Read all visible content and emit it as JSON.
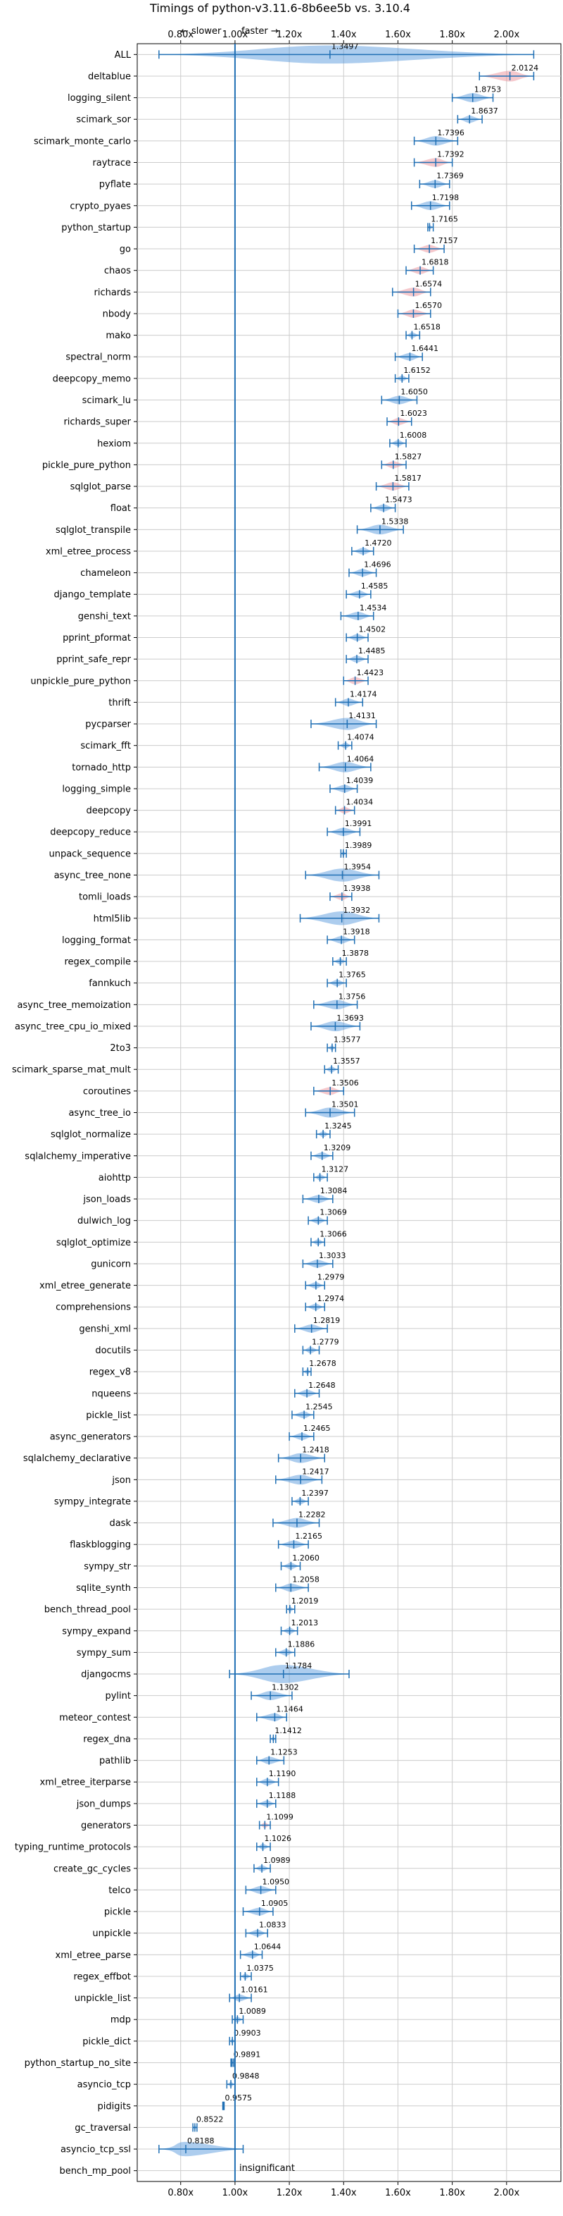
{
  "chart_data": {
    "type": "violin",
    "title": "Timings of python-v3.11.6-8b6ee5b vs. 3.10.4",
    "top_annotation": {
      "slower": "← slower",
      "faster": "faster →"
    },
    "bottom_annotation": "insignificant",
    "x_ticks": [
      "0.80x",
      "1.00x",
      "1.20x",
      "1.40x",
      "1.60x",
      "1.80x",
      "2.00x"
    ],
    "x_tick_values": [
      0.8,
      1.0,
      1.2,
      1.4,
      1.6,
      1.8,
      2.0
    ],
    "xlim": [
      0.64,
      2.2
    ],
    "reference_line": 1.0,
    "grid": true,
    "colors": {
      "faster": "#4a90d9",
      "slower": "#e8848f",
      "whisker": "#1f6fb4",
      "grid": "#cccccc"
    },
    "benchmarks": [
      {
        "name": "ALL",
        "value": 1.3497,
        "color": "blue",
        "min": 0.72,
        "max": 2.1
      },
      {
        "name": "deltablue",
        "value": 2.0124,
        "color": "red",
        "min": 1.9,
        "max": 2.1
      },
      {
        "name": "logging_silent",
        "value": 1.8753,
        "color": "blue",
        "min": 1.8,
        "max": 1.95
      },
      {
        "name": "scimark_sor",
        "value": 1.8637,
        "color": "blue",
        "min": 1.82,
        "max": 1.91
      },
      {
        "name": "scimark_monte_carlo",
        "value": 1.7396,
        "color": "blue",
        "min": 1.66,
        "max": 1.82
      },
      {
        "name": "raytrace",
        "value": 1.7392,
        "color": "red",
        "min": 1.66,
        "max": 1.8
      },
      {
        "name": "pyflate",
        "value": 1.7369,
        "color": "blue",
        "min": 1.68,
        "max": 1.79
      },
      {
        "name": "crypto_pyaes",
        "value": 1.7198,
        "color": "blue",
        "min": 1.65,
        "max": 1.79
      },
      {
        "name": "python_startup",
        "value": 1.7165,
        "color": "blue",
        "min": 1.71,
        "max": 1.73
      },
      {
        "name": "go",
        "value": 1.7157,
        "color": "red",
        "min": 1.66,
        "max": 1.77
      },
      {
        "name": "chaos",
        "value": 1.6818,
        "color": "red",
        "min": 1.63,
        "max": 1.73
      },
      {
        "name": "richards",
        "value": 1.6574,
        "color": "red",
        "min": 1.58,
        "max": 1.72
      },
      {
        "name": "nbody",
        "value": 1.657,
        "color": "red",
        "min": 1.6,
        "max": 1.72
      },
      {
        "name": "mako",
        "value": 1.6518,
        "color": "blue",
        "min": 1.63,
        "max": 1.68
      },
      {
        "name": "spectral_norm",
        "value": 1.6441,
        "color": "blue",
        "min": 1.59,
        "max": 1.69
      },
      {
        "name": "deepcopy_memo",
        "value": 1.6152,
        "color": "blue",
        "min": 1.59,
        "max": 1.64
      },
      {
        "name": "scimark_lu",
        "value": 1.605,
        "color": "blue",
        "min": 1.54,
        "max": 1.67
      },
      {
        "name": "richards_super",
        "value": 1.6023,
        "color": "red",
        "min": 1.56,
        "max": 1.65
      },
      {
        "name": "hexiom",
        "value": 1.6008,
        "color": "blue",
        "min": 1.57,
        "max": 1.63
      },
      {
        "name": "pickle_pure_python",
        "value": 1.5827,
        "color": "red",
        "min": 1.54,
        "max": 1.63
      },
      {
        "name": "sqlglot_parse",
        "value": 1.5817,
        "color": "red",
        "min": 1.52,
        "max": 1.64
      },
      {
        "name": "float",
        "value": 1.5473,
        "color": "blue",
        "min": 1.5,
        "max": 1.59
      },
      {
        "name": "sqlglot_transpile",
        "value": 1.5338,
        "color": "blue",
        "min": 1.45,
        "max": 1.62
      },
      {
        "name": "xml_etree_process",
        "value": 1.472,
        "color": "blue",
        "min": 1.43,
        "max": 1.51
      },
      {
        "name": "chameleon",
        "value": 1.4696,
        "color": "blue",
        "min": 1.42,
        "max": 1.52
      },
      {
        "name": "django_template",
        "value": 1.4585,
        "color": "blue",
        "min": 1.41,
        "max": 1.5
      },
      {
        "name": "genshi_text",
        "value": 1.4534,
        "color": "blue",
        "min": 1.39,
        "max": 1.51
      },
      {
        "name": "pprint_pformat",
        "value": 1.4502,
        "color": "blue",
        "min": 1.41,
        "max": 1.49
      },
      {
        "name": "pprint_safe_repr",
        "value": 1.4485,
        "color": "blue",
        "min": 1.41,
        "max": 1.49
      },
      {
        "name": "unpickle_pure_python",
        "value": 1.4423,
        "color": "red",
        "min": 1.4,
        "max": 1.49
      },
      {
        "name": "thrift",
        "value": 1.4174,
        "color": "blue",
        "min": 1.37,
        "max": 1.47
      },
      {
        "name": "pycparser",
        "value": 1.4131,
        "color": "blue",
        "min": 1.28,
        "max": 1.52
      },
      {
        "name": "scimark_fft",
        "value": 1.4074,
        "color": "blue",
        "min": 1.38,
        "max": 1.43
      },
      {
        "name": "tornado_http",
        "value": 1.4064,
        "color": "blue",
        "min": 1.31,
        "max": 1.5
      },
      {
        "name": "logging_simple",
        "value": 1.4039,
        "color": "blue",
        "min": 1.35,
        "max": 1.45
      },
      {
        "name": "deepcopy",
        "value": 1.4034,
        "color": "red",
        "min": 1.37,
        "max": 1.44
      },
      {
        "name": "deepcopy_reduce",
        "value": 1.3991,
        "color": "blue",
        "min": 1.34,
        "max": 1.46
      },
      {
        "name": "unpack_sequence",
        "value": 1.3989,
        "color": "blue",
        "min": 1.39,
        "max": 1.41
      },
      {
        "name": "async_tree_none",
        "value": 1.3954,
        "color": "blue",
        "min": 1.26,
        "max": 1.53
      },
      {
        "name": "tomli_loads",
        "value": 1.3938,
        "color": "red",
        "min": 1.35,
        "max": 1.43
      },
      {
        "name": "html5lib",
        "value": 1.3932,
        "color": "blue",
        "min": 1.24,
        "max": 1.53
      },
      {
        "name": "logging_format",
        "value": 1.3918,
        "color": "blue",
        "min": 1.34,
        "max": 1.44
      },
      {
        "name": "regex_compile",
        "value": 1.3878,
        "color": "blue",
        "min": 1.36,
        "max": 1.41
      },
      {
        "name": "fannkuch",
        "value": 1.3765,
        "color": "blue",
        "min": 1.34,
        "max": 1.41
      },
      {
        "name": "async_tree_memoization",
        "value": 1.3756,
        "color": "blue",
        "min": 1.29,
        "max": 1.45
      },
      {
        "name": "async_tree_cpu_io_mixed",
        "value": 1.3693,
        "color": "blue",
        "min": 1.28,
        "max": 1.46
      },
      {
        "name": "2to3",
        "value": 1.3577,
        "color": "blue",
        "min": 1.34,
        "max": 1.37
      },
      {
        "name": "scimark_sparse_mat_mult",
        "value": 1.3557,
        "color": "blue",
        "min": 1.33,
        "max": 1.38
      },
      {
        "name": "coroutines",
        "value": 1.3506,
        "color": "red",
        "min": 1.29,
        "max": 1.4
      },
      {
        "name": "async_tree_io",
        "value": 1.3501,
        "color": "blue",
        "min": 1.26,
        "max": 1.44
      },
      {
        "name": "sqlglot_normalize",
        "value": 1.3245,
        "color": "blue",
        "min": 1.3,
        "max": 1.35
      },
      {
        "name": "sqlalchemy_imperative",
        "value": 1.3209,
        "color": "blue",
        "min": 1.28,
        "max": 1.36
      },
      {
        "name": "aiohttp",
        "value": 1.3127,
        "color": "blue",
        "min": 1.29,
        "max": 1.34
      },
      {
        "name": "json_loads",
        "value": 1.3084,
        "color": "blue",
        "min": 1.25,
        "max": 1.36
      },
      {
        "name": "dulwich_log",
        "value": 1.3069,
        "color": "blue",
        "min": 1.27,
        "max": 1.34
      },
      {
        "name": "sqlglot_optimize",
        "value": 1.3066,
        "color": "blue",
        "min": 1.28,
        "max": 1.33
      },
      {
        "name": "gunicorn",
        "value": 1.3033,
        "color": "blue",
        "min": 1.25,
        "max": 1.36
      },
      {
        "name": "xml_etree_generate",
        "value": 1.2979,
        "color": "blue",
        "min": 1.26,
        "max": 1.33
      },
      {
        "name": "comprehensions",
        "value": 1.2974,
        "color": "blue",
        "min": 1.26,
        "max": 1.33
      },
      {
        "name": "genshi_xml",
        "value": 1.2819,
        "color": "blue",
        "min": 1.22,
        "max": 1.34
      },
      {
        "name": "docutils",
        "value": 1.2779,
        "color": "blue",
        "min": 1.25,
        "max": 1.31
      },
      {
        "name": "regex_v8",
        "value": 1.2678,
        "color": "blue",
        "min": 1.25,
        "max": 1.28
      },
      {
        "name": "nqueens",
        "value": 1.2648,
        "color": "blue",
        "min": 1.22,
        "max": 1.31
      },
      {
        "name": "pickle_list",
        "value": 1.2545,
        "color": "blue",
        "min": 1.21,
        "max": 1.29
      },
      {
        "name": "async_generators",
        "value": 1.2465,
        "color": "blue",
        "min": 1.2,
        "max": 1.29
      },
      {
        "name": "sqlalchemy_declarative",
        "value": 1.2418,
        "color": "blue",
        "min": 1.16,
        "max": 1.33
      },
      {
        "name": "json",
        "value": 1.2417,
        "color": "blue",
        "min": 1.15,
        "max": 1.32
      },
      {
        "name": "sympy_integrate",
        "value": 1.2397,
        "color": "blue",
        "min": 1.21,
        "max": 1.27
      },
      {
        "name": "dask",
        "value": 1.2282,
        "color": "blue",
        "min": 1.14,
        "max": 1.31
      },
      {
        "name": "flaskblogging",
        "value": 1.2165,
        "color": "blue",
        "min": 1.16,
        "max": 1.27
      },
      {
        "name": "sympy_str",
        "value": 1.206,
        "color": "blue",
        "min": 1.17,
        "max": 1.24
      },
      {
        "name": "sqlite_synth",
        "value": 1.2058,
        "color": "blue",
        "min": 1.15,
        "max": 1.27
      },
      {
        "name": "bench_thread_pool",
        "value": 1.2019,
        "color": "blue",
        "min": 1.19,
        "max": 1.22
      },
      {
        "name": "sympy_expand",
        "value": 1.2013,
        "color": "blue",
        "min": 1.17,
        "max": 1.23
      },
      {
        "name": "sympy_sum",
        "value": 1.1886,
        "color": "blue",
        "min": 1.15,
        "max": 1.22
      },
      {
        "name": "djangocms",
        "value": 1.1784,
        "color": "blue",
        "min": 0.98,
        "max": 1.42
      },
      {
        "name": "pylint",
        "value": 1.1302,
        "color": "blue",
        "min": 1.06,
        "max": 1.21
      },
      {
        "name": "meteor_contest",
        "value": 1.1464,
        "color": "blue",
        "min": 1.08,
        "max": 1.19
      },
      {
        "name": "regex_dna",
        "value": 1.1412,
        "color": "blue",
        "min": 1.13,
        "max": 1.15
      },
      {
        "name": "pathlib",
        "value": 1.1253,
        "color": "blue",
        "min": 1.08,
        "max": 1.18
      },
      {
        "name": "xml_etree_iterparse",
        "value": 1.119,
        "color": "blue",
        "min": 1.08,
        "max": 1.16
      },
      {
        "name": "json_dumps",
        "value": 1.1188,
        "color": "blue",
        "min": 1.08,
        "max": 1.15
      },
      {
        "name": "generators",
        "value": 1.1099,
        "color": "red",
        "min": 1.09,
        "max": 1.13
      },
      {
        "name": "typing_runtime_protocols",
        "value": 1.1026,
        "color": "blue",
        "min": 1.08,
        "max": 1.13
      },
      {
        "name": "create_gc_cycles",
        "value": 1.0989,
        "color": "blue",
        "min": 1.07,
        "max": 1.13
      },
      {
        "name": "telco",
        "value": 1.095,
        "color": "blue",
        "min": 1.04,
        "max": 1.15
      },
      {
        "name": "pickle",
        "value": 1.0905,
        "color": "blue",
        "min": 1.03,
        "max": 1.14
      },
      {
        "name": "unpickle",
        "value": 1.0833,
        "color": "blue",
        "min": 1.04,
        "max": 1.12
      },
      {
        "name": "xml_etree_parse",
        "value": 1.0644,
        "color": "blue",
        "min": 1.02,
        "max": 1.1
      },
      {
        "name": "regex_effbot",
        "value": 1.0375,
        "color": "blue",
        "min": 1.02,
        "max": 1.06
      },
      {
        "name": "unpickle_list",
        "value": 1.0161,
        "color": "blue",
        "min": 0.98,
        "max": 1.06
      },
      {
        "name": "mdp",
        "value": 1.0089,
        "color": "blue",
        "min": 0.99,
        "max": 1.03
      },
      {
        "name": "pickle_dict",
        "value": 0.9903,
        "color": "blue",
        "min": 0.98,
        "max": 1.0
      },
      {
        "name": "python_startup_no_site",
        "value": 0.9891,
        "color": "blue",
        "min": 0.985,
        "max": 0.995
      },
      {
        "name": "asyncio_tcp",
        "value": 0.9848,
        "color": "blue",
        "min": 0.97,
        "max": 1.0
      },
      {
        "name": "pidigits",
        "value": 0.9575,
        "color": "blue",
        "min": 0.955,
        "max": 0.96
      },
      {
        "name": "gc_traversal",
        "value": 0.8522,
        "color": "blue",
        "min": 0.845,
        "max": 0.86
      },
      {
        "name": "asyncio_tcp_ssl",
        "value": 0.8188,
        "color": "blue",
        "min": 0.72,
        "max": 1.03
      },
      {
        "name": "bench_mp_pool",
        "value": null,
        "color": "none",
        "min": null,
        "max": null
      }
    ]
  }
}
